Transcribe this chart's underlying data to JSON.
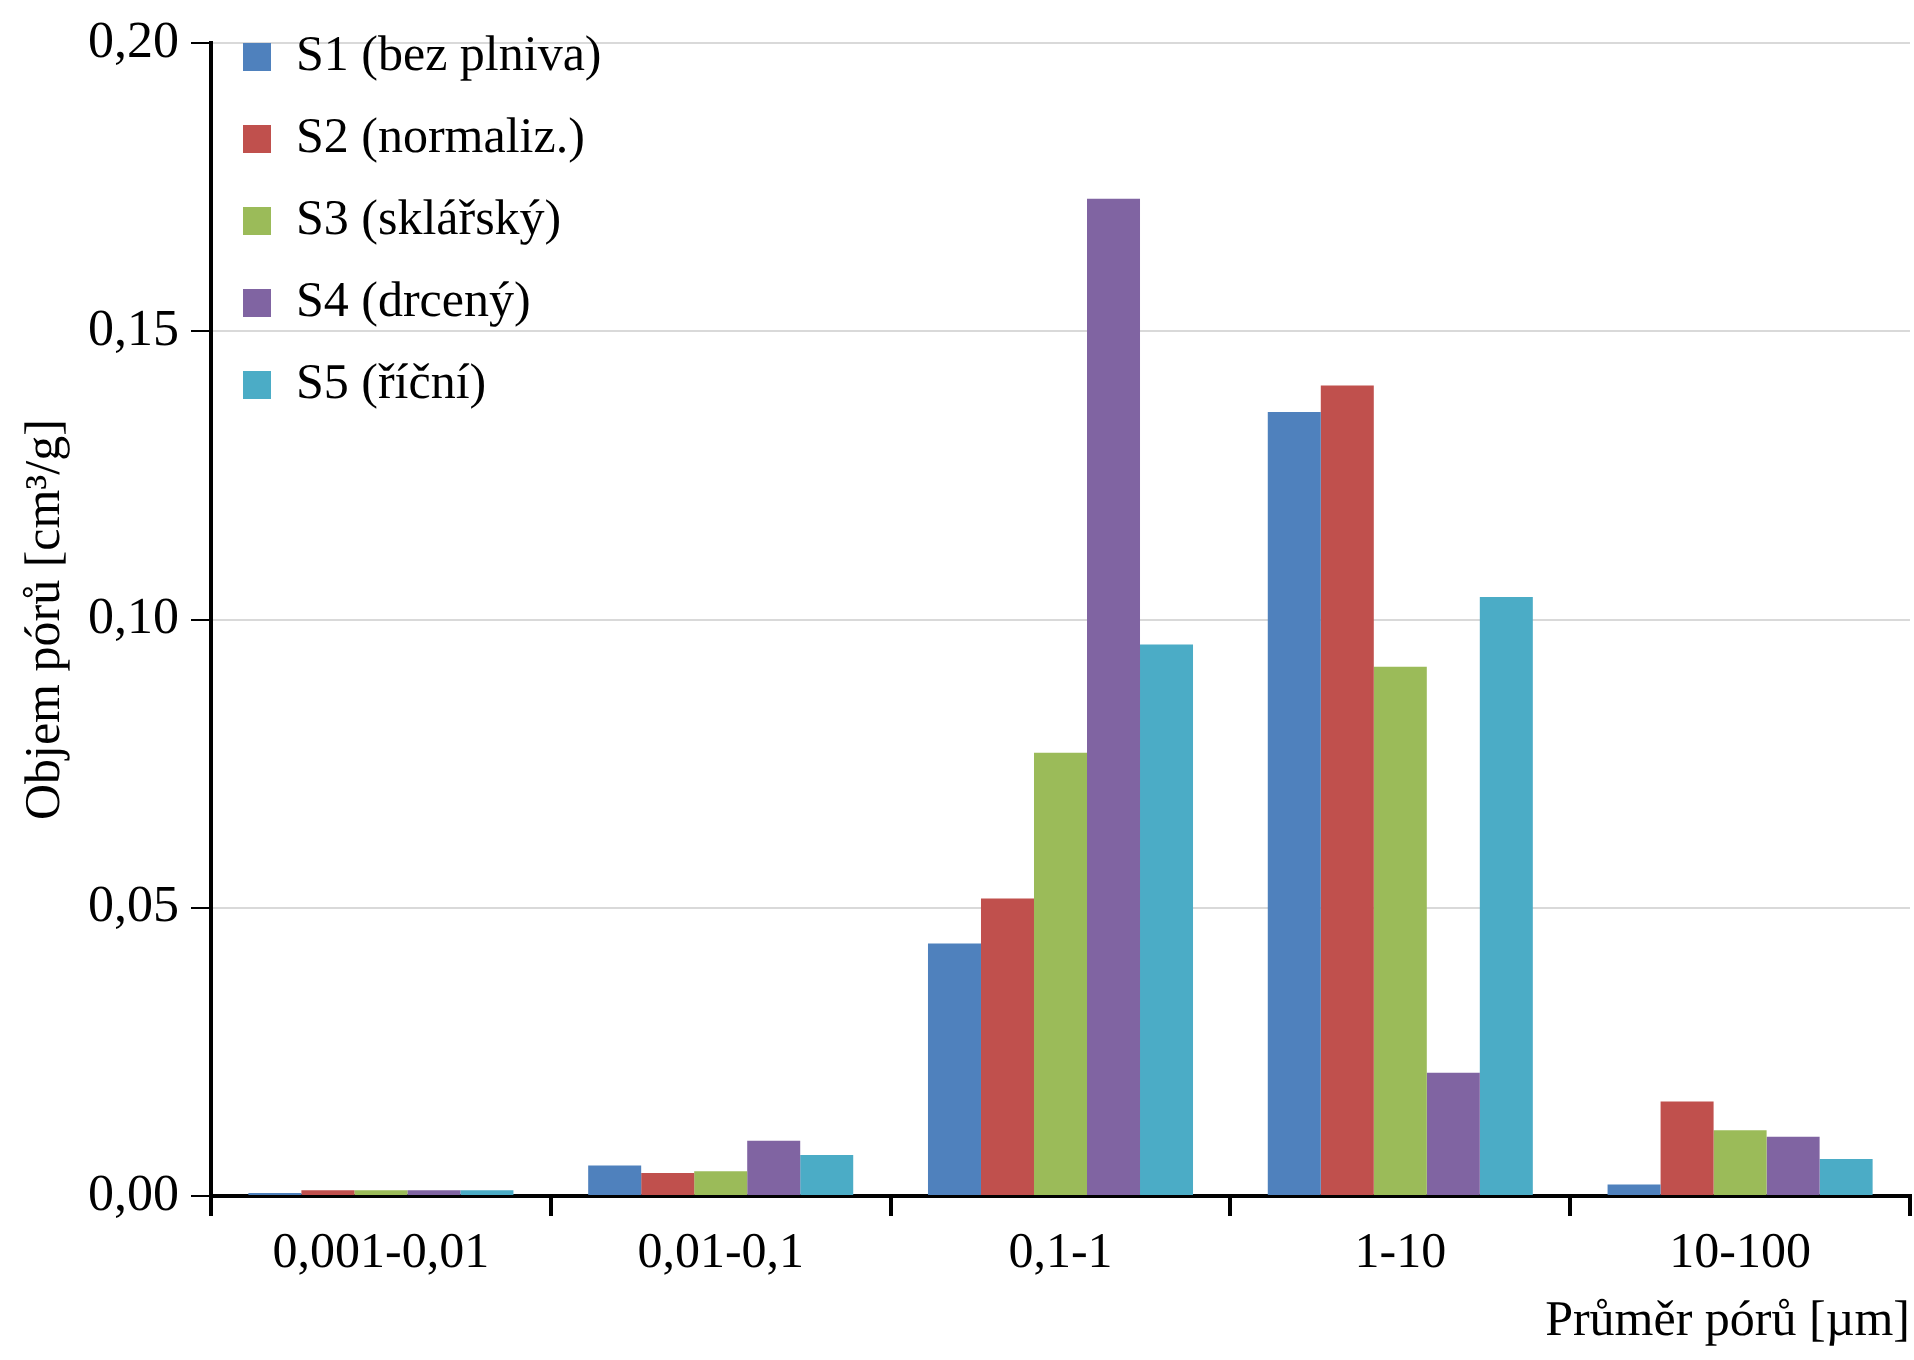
{
  "chart_data": {
    "type": "bar",
    "ylabel": "Objem pórů [cm³/g]",
    "xlabel": "Průměr pórů [µm]",
    "categories": [
      "0,001-0,01",
      "0,01-0,1",
      "0,1-1",
      "1-10",
      "10-100"
    ],
    "series": [
      {
        "name": "S1 (bez plniva)",
        "color": "#4f81bd",
        "values": [
          0.0005,
          0.0053,
          0.0438,
          0.136,
          0.002
        ]
      },
      {
        "name": "S2 (normaliz.)",
        "color": "#c0504d",
        "values": [
          0.001,
          0.004,
          0.0516,
          0.1406,
          0.0164
        ]
      },
      {
        "name": "S3 (sklářský)",
        "color": "#9bbb59",
        "values": [
          0.001,
          0.0043,
          0.0769,
          0.0918,
          0.0114
        ]
      },
      {
        "name": "S4 (drcený)",
        "color": "#8064a2",
        "values": [
          0.001,
          0.0096,
          0.173,
          0.0214,
          0.0103
        ]
      },
      {
        "name": "S5 (říční)",
        "color": "#4bacc6",
        "values": [
          0.001,
          0.0071,
          0.0957,
          0.1039,
          0.0064
        ]
      }
    ],
    "ylim": [
      0,
      0.2
    ],
    "yticks": [
      {
        "value": 0,
        "label": "0,00"
      },
      {
        "value": 0.05,
        "label": "0,05"
      },
      {
        "value": 0.1,
        "label": "0,10"
      },
      {
        "value": 0.15,
        "label": "0,15"
      },
      {
        "value": 0.2,
        "label": "0,20"
      }
    ],
    "grid": "y",
    "legend": "top left"
  }
}
